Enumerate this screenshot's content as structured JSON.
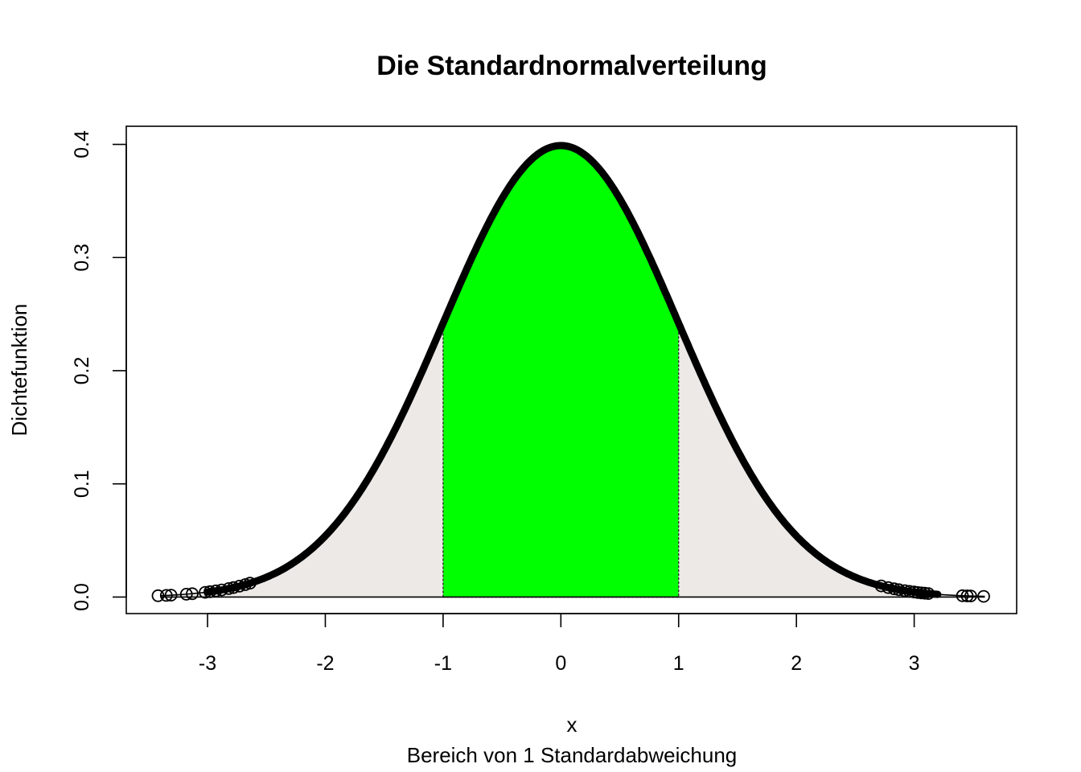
{
  "chart_data": {
    "type": "area",
    "title": "Die Standardnormalverteilung",
    "xlabel": "x",
    "ylabel": "Dichtefunktion",
    "subtitle": "Bereich von 1 Standardabweichung",
    "xlim": [
      -3.69,
      3.87
    ],
    "ylim": [
      -0.0146,
      0.416
    ],
    "x_ticks": [
      -3,
      -2,
      -1,
      0,
      1,
      2,
      3
    ],
    "x_tick_labels": [
      "-3",
      "-2",
      "-1",
      "0",
      "1",
      "2",
      "3"
    ],
    "y_ticks": [
      0.0,
      0.1,
      0.2,
      0.3,
      0.4
    ],
    "y_tick_labels": [
      "0.0",
      "0.1",
      "0.2",
      "0.3",
      "0.4"
    ],
    "grid": false,
    "series": [
      {
        "kind": "density-curve",
        "x_range": [
          -3.4,
          3.6
        ],
        "function": "standard-normal-pdf"
      }
    ],
    "shaded_region": {
      "from": -1,
      "to": 1,
      "color": "#00ff00"
    },
    "tail_fill_color": "#ece9e7",
    "tail_points_x": [
      -3.42,
      -3.35,
      -3.31,
      -3.18,
      -3.13,
      -3.02,
      -2.98,
      -2.93,
      -2.88,
      -2.82,
      -2.78,
      -2.73,
      -2.68,
      -2.64,
      2.72,
      2.78,
      2.83,
      2.87,
      2.92,
      2.96,
      3.0,
      3.03,
      3.06,
      3.09,
      3.12,
      3.41,
      3.45,
      3.48,
      3.59
    ]
  }
}
